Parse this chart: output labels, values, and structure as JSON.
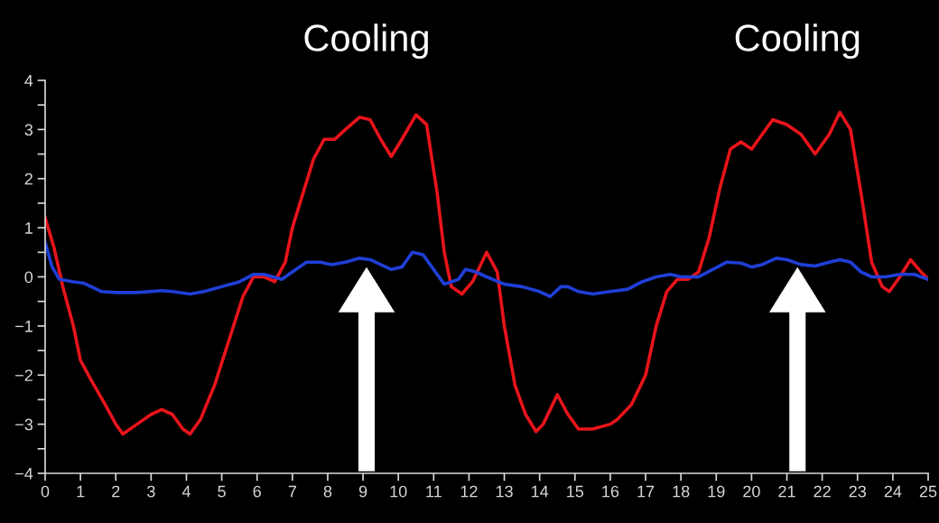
{
  "chart_data": {
    "type": "line",
    "annotations": [
      "Cooling",
      "Cooling"
    ],
    "ref_lines": [
      {
        "axis": "x",
        "value": 9.1,
        "color": "#ffffff"
      },
      {
        "axis": "x",
        "value": 21.3,
        "color": "#ffffff"
      }
    ],
    "xlim": [
      0,
      25
    ],
    "xticks": [
      0,
      1,
      2,
      3,
      4,
      5,
      6,
      7,
      8,
      9,
      10,
      11,
      12,
      13,
      14,
      15,
      16,
      17,
      18,
      19,
      20,
      21,
      22,
      23,
      24,
      25
    ],
    "ylim": [
      -4,
      4
    ],
    "yticks": [
      -4,
      {
        "value": -3.5,
        "label": null
      },
      -3,
      {
        "value": -2.5,
        "label": null
      },
      -2,
      {
        "value": -1.5,
        "label": null
      },
      -1,
      {
        "value": -0.5,
        "label": null
      },
      0,
      {
        "value": 0.5,
        "label": null
      },
      1,
      {
        "value": 1.5,
        "label": null
      },
      2,
      {
        "value": 2.5,
        "label": null
      },
      3,
      {
        "value": 3.5,
        "label": null
      },
      4
    ],
    "grid": false,
    "legend": false,
    "line_style": "solid",
    "series": [
      {
        "color": "#e8141b",
        "x": [
          0,
          0.25,
          0.5,
          0.8,
          1.0,
          1.3,
          1.7,
          2.0,
          2.2,
          2.6,
          3.0,
          3.3,
          3.6,
          3.9,
          4.1,
          4.4,
          4.8,
          5.2,
          5.6,
          5.9,
          6.2,
          6.5,
          6.8,
          7.0,
          7.3,
          7.6,
          7.9,
          8.2,
          8.5,
          8.9,
          9.2,
          9.5,
          9.8,
          10.1,
          10.5,
          10.8,
          11.1,
          11.3,
          11.5,
          11.8,
          12.1,
          12.5,
          12.8,
          13.0,
          13.3,
          13.6,
          13.9,
          14.1,
          14.5,
          14.8,
          15.1,
          15.5,
          16.0,
          16.2,
          16.6,
          17.0,
          17.3,
          17.6,
          17.9,
          18.2,
          18.5,
          18.8,
          19.1,
          19.4,
          19.7,
          20.0,
          20.3,
          20.6,
          21.0,
          21.4,
          21.8,
          22.2,
          22.5,
          22.8,
          23.1,
          23.4,
          23.7,
          23.9,
          24.2,
          24.5,
          24.8,
          25.0
        ],
        "values": [
          1.2,
          0.6,
          -0.2,
          -1.0,
          -1.7,
          -2.1,
          -2.6,
          -3.0,
          -3.2,
          -3.0,
          -2.8,
          -2.7,
          -2.8,
          -3.1,
          -3.2,
          -2.9,
          -2.2,
          -1.3,
          -0.4,
          0,
          0,
          -0.1,
          0.3,
          1.0,
          1.7,
          2.4,
          2.8,
          2.8,
          3.0,
          3.25,
          3.2,
          2.8,
          2.45,
          2.8,
          3.3,
          3.1,
          1.7,
          0.5,
          -0.2,
          -0.35,
          -0.1,
          0.5,
          0.1,
          -1.0,
          -2.2,
          -2.8,
          -3.15,
          -3.0,
          -2.4,
          -2.8,
          -3.1,
          -3.1,
          -3.0,
          -2.9,
          -2.6,
          -2.0,
          -1.0,
          -0.3,
          -0.05,
          -0.05,
          0.1,
          0.8,
          1.8,
          2.6,
          2.75,
          2.6,
          2.9,
          3.2,
          3.1,
          2.9,
          2.5,
          2.9,
          3.35,
          3.0,
          1.7,
          0.3,
          -0.2,
          -0.3,
          0.0,
          0.35,
          0.1,
          -0.05
        ]
      },
      {
        "color": "#1f3fd6",
        "x": [
          0,
          0.2,
          0.4,
          0.8,
          1.1,
          1.6,
          2.0,
          2.6,
          3.3,
          3.6,
          4.1,
          4.5,
          5.0,
          5.5,
          5.9,
          6.2,
          6.7,
          7.0,
          7.4,
          7.8,
          8.1,
          8.5,
          8.9,
          9.2,
          9.5,
          9.8,
          10.1,
          10.4,
          10.7,
          11.0,
          11.3,
          11.5,
          11.7,
          11.9,
          12.2,
          12.5,
          13.0,
          13.5,
          14.0,
          14.3,
          14.6,
          14.8,
          15.1,
          15.5,
          16.0,
          16.5,
          16.9,
          17.3,
          17.7,
          18.0,
          18.5,
          18.9,
          19.3,
          19.7,
          20.0,
          20.3,
          20.7,
          21.0,
          21.4,
          21.8,
          22.2,
          22.5,
          22.8,
          23.1,
          23.4,
          23.8,
          24.2,
          24.6,
          25.0
        ],
        "values": [
          0.7,
          0.2,
          -0.05,
          -0.1,
          -0.13,
          -0.3,
          -0.32,
          -0.32,
          -0.28,
          -0.3,
          -0.35,
          -0.3,
          -0.2,
          -0.1,
          0.05,
          0.05,
          -0.05,
          0.1,
          0.3,
          0.3,
          0.25,
          0.3,
          0.38,
          0.35,
          0.25,
          0.15,
          0.2,
          0.5,
          0.45,
          0.15,
          -0.15,
          -0.1,
          -0.05,
          0.15,
          0.1,
          0.0,
          -0.15,
          -0.2,
          -0.3,
          -0.4,
          -0.2,
          -0.2,
          -0.3,
          -0.35,
          -0.3,
          -0.25,
          -0.1,
          0.0,
          0.05,
          0.0,
          0.0,
          0.15,
          0.3,
          0.28,
          0.2,
          0.25,
          0.38,
          0.35,
          0.25,
          0.22,
          0.3,
          0.35,
          0.3,
          0.1,
          0.0,
          0.0,
          0.05,
          0.05,
          -0.05
        ]
      }
    ]
  }
}
